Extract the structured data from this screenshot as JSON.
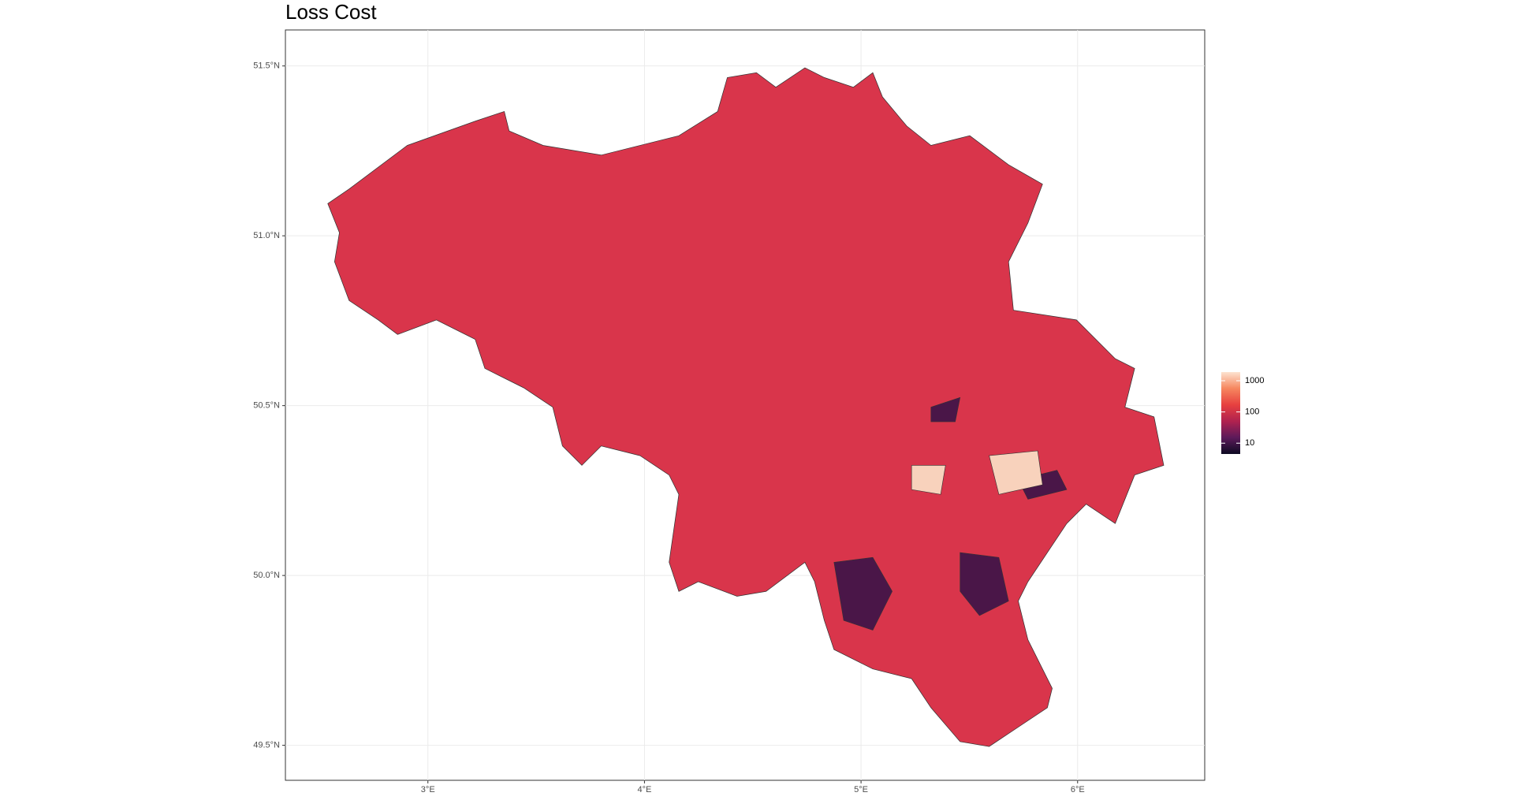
{
  "chart_data": {
    "type": "choropleth",
    "title": "Loss Cost",
    "xlim": [
      2.342,
      6.587
    ],
    "ylim": [
      49.397,
      51.606
    ],
    "xticks": [
      {
        "value": 3,
        "label": "3°E"
      },
      {
        "value": 4,
        "label": "4°E"
      },
      {
        "value": 5,
        "label": "5°E"
      },
      {
        "value": 6,
        "label": "6°E"
      }
    ],
    "yticks": [
      {
        "value": 49.5,
        "label": "49.5°N"
      },
      {
        "value": 50,
        "label": "50.0°N"
      },
      {
        "value": 50.5,
        "label": "50.5°N"
      },
      {
        "value": 51,
        "label": "51.0°N"
      },
      {
        "value": 51.5,
        "label": "51.5°N"
      }
    ],
    "grid": true,
    "legend": {
      "scale": "log",
      "lim": [
        4.5,
        1900
      ],
      "ticks": [
        10,
        100,
        1000
      ],
      "colors": [
        "#0d0a22",
        "#5c1a5a",
        "#b0224f",
        "#e7403f",
        "#f6875f",
        "#fde3d0"
      ]
    }
  }
}
